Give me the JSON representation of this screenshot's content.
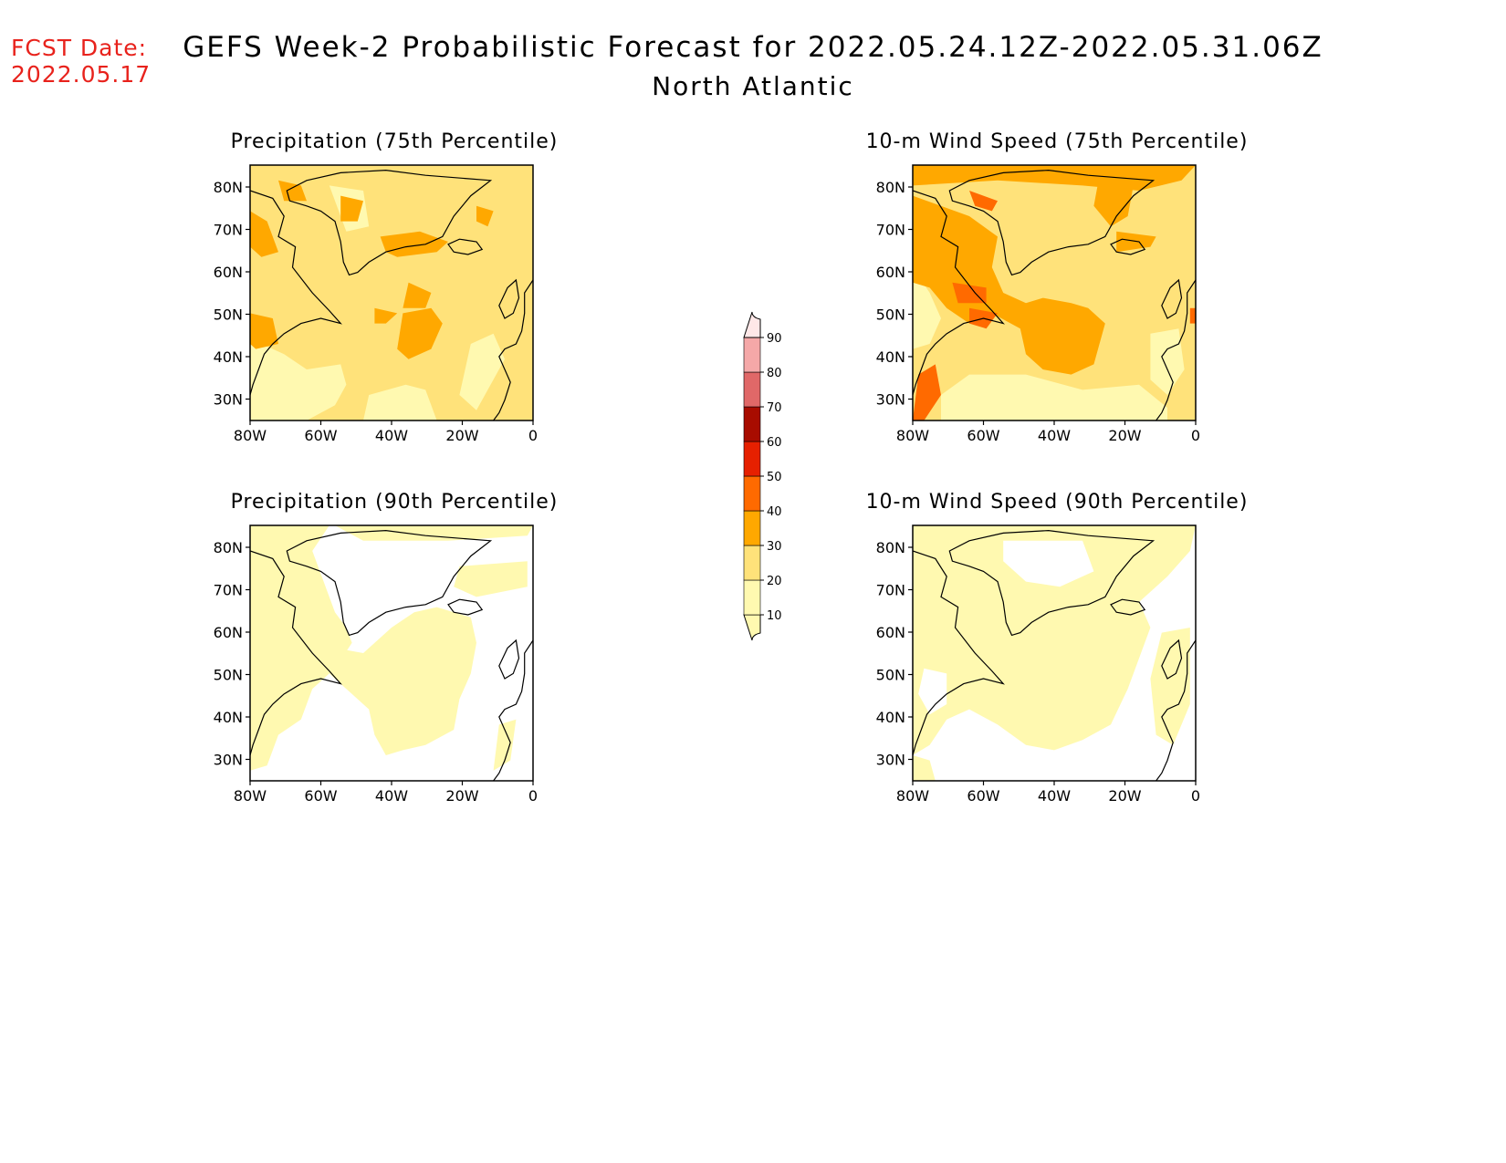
{
  "forecast_date": {
    "label": "FCST Date:",
    "value": "2022.05.17"
  },
  "title": "GEFS Week-2 Probabilistic Forecast for 2022.05.24.12Z-2022.05.31.06Z",
  "subtitle": "North Atlantic",
  "axes": {
    "lat_labels": [
      "80N",
      "70N",
      "60N",
      "50N",
      "40N",
      "30N"
    ],
    "lon_labels": [
      "80W",
      "60W",
      "40W",
      "20W",
      "0"
    ]
  },
  "panels": [
    {
      "title": "Precipitation (75th Percentile)",
      "variable": "precipitation",
      "percentile": 75
    },
    {
      "title": "10-m Wind Speed (75th Percentile)",
      "variable": "wind",
      "percentile": 75
    },
    {
      "title": "Precipitation (90th Percentile)",
      "variable": "precipitation",
      "percentile": 90
    },
    {
      "title": "10-m Wind Speed (90th Percentile)",
      "variable": "wind",
      "percentile": 90
    }
  ],
  "colorbar": {
    "levels": [
      "10",
      "20",
      "30",
      "40",
      "50",
      "60",
      "70",
      "80",
      "90"
    ],
    "colors": [
      "#fff9b0",
      "#ffe27a",
      "#ffa800",
      "#ff6a00",
      "#e62000",
      "#a80c00",
      "#e06868",
      "#f5a8a8",
      "#ffe8e8"
    ]
  }
}
